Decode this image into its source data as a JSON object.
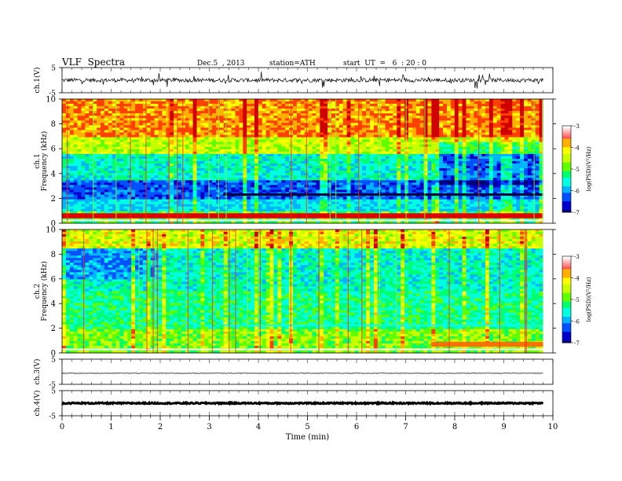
{
  "header": {
    "title": "VLF  Spectra",
    "date": "Dec.5  , 2013",
    "station": "station=ATH",
    "start": "start  UT  =   6  : 20 : 0"
  },
  "chart_data": {
    "type": "heatmap",
    "xlabel": "Time  (min)",
    "xlim": [
      0,
      10
    ],
    "xticks": [
      "0",
      "1",
      "2",
      "3",
      "4",
      "5",
      "6",
      "7",
      "8",
      "9",
      "10"
    ],
    "data_end_min": 9.8,
    "panels": [
      {
        "id": "ch1-waveform",
        "type": "line",
        "ylabel": "ch.1(V)",
        "yticks": [
          "5",
          "-5"
        ],
        "ylim": [
          -5,
          5
        ],
        "baseline": 0,
        "noise": "medium"
      },
      {
        "id": "ch1-spectrogram",
        "type": "heatmap",
        "ylabel_lines": [
          "ch.1",
          "Frequency  (kHz)"
        ],
        "yticks": [
          "0",
          "2",
          "4",
          "6",
          "8",
          "10"
        ],
        "ylim": [
          0,
          10
        ],
        "colorbar": {
          "label": "log(PSD)(V²/Hz)",
          "ticks": [
            "-3",
            "-4",
            "-5",
            "-6",
            "-7"
          ],
          "range": [
            -7,
            -3
          ]
        }
      },
      {
        "id": "ch2-spectrogram",
        "type": "heatmap",
        "ylabel_lines": [
          "ch.2",
          "Frequency  (kHz)"
        ],
        "yticks": [
          "0",
          "2",
          "4",
          "6",
          "8",
          "10"
        ],
        "ylim": [
          0,
          10
        ],
        "colorbar": {
          "label": "log(PSD)(V²/Hz)",
          "ticks": [
            "-3",
            "-4",
            "-5",
            "-6",
            "-7"
          ],
          "range": [
            -7,
            -3
          ]
        }
      },
      {
        "id": "ch3-waveform",
        "type": "line",
        "ylabel": "ch.3(V)",
        "yticks": [
          "5",
          "-5"
        ],
        "ylim": [
          -5,
          5
        ],
        "baseline": -0.6,
        "noise": "low"
      },
      {
        "id": "ch4-waveform",
        "type": "line",
        "ylabel": "ch.4(V)",
        "yticks": [
          "5",
          "-5"
        ],
        "ylim": [
          -5,
          5
        ],
        "baseline": 0,
        "noise": "thick"
      }
    ]
  }
}
